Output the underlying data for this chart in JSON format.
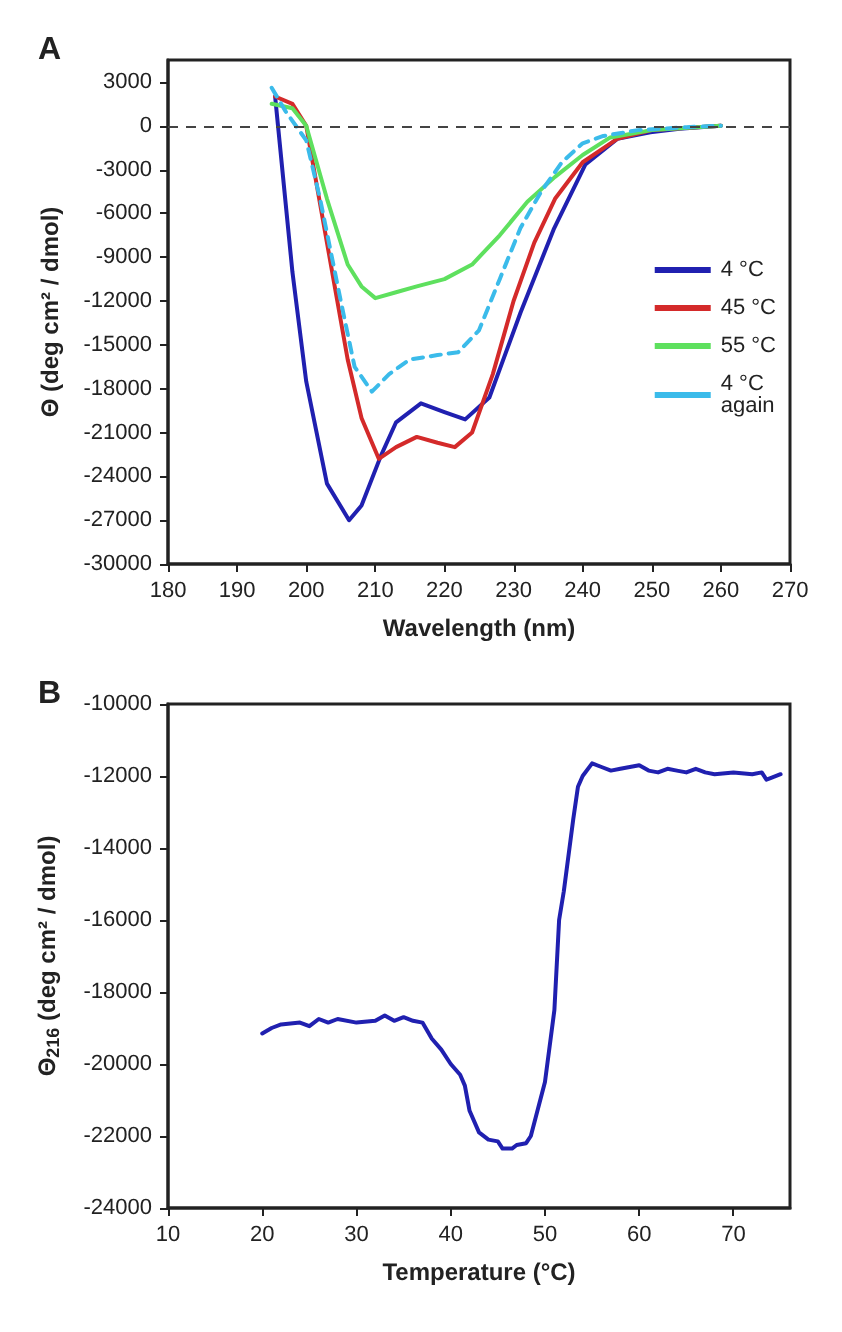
{
  "chart_data": [
    {
      "type": "line",
      "title": "A",
      "xlabel": "Wavelength (nm)",
      "ylabel": "Θ (deg cm² / dmol)",
      "xlim": [
        180,
        270
      ],
      "xticks": [
        180,
        190,
        200,
        210,
        220,
        230,
        240,
        250,
        260,
        270
      ],
      "ylim": [
        -30000,
        4500
      ],
      "yticks": [
        -30000,
        -27000,
        -24000,
        -21000,
        -18000,
        -15000,
        -12000,
        -9000,
        -6000,
        -3000,
        0,
        3000
      ],
      "grid": false,
      "legend": "right",
      "marker": "none",
      "ref_lines": [
        {
          "axis": "y",
          "value": 0,
          "color": "#444444",
          "line_style": "dashed"
        }
      ],
      "series": [
        {
          "name": "4 °C",
          "color": "#2020b0",
          "line_style": "solid",
          "x": [
            195.5,
            198,
            200,
            203,
            206.2,
            208,
            210.8,
            213,
            216.6,
            220,
            223,
            226.5,
            231,
            235.8,
            240.4,
            245,
            249.8,
            254,
            260
          ],
          "values": [
            2000,
            -10000,
            -17500,
            -24500,
            -27000,
            -26000,
            -22600,
            -20300,
            -19000,
            -19600,
            -20100,
            -18600,
            -12800,
            -7100,
            -2650,
            -900,
            -450,
            -200,
            0
          ]
        },
        {
          "name": "45 °C",
          "color": "#d42a2a",
          "line_style": "solid",
          "x": [
            195.5,
            198,
            200,
            203,
            206,
            208,
            210.5,
            213,
            216,
            219,
            221.5,
            224,
            227,
            230,
            233,
            236,
            240,
            245,
            250,
            260
          ],
          "values": [
            2000,
            1500,
            0,
            -8000,
            -16000,
            -20000,
            -22800,
            -22000,
            -21300,
            -21700,
            -22000,
            -21000,
            -17000,
            -12000,
            -8000,
            -5000,
            -2500,
            -900,
            -300,
            0
          ]
        },
        {
          "name": "55 °C",
          "color": "#5ee05e",
          "line_style": "solid",
          "x": [
            195,
            198,
            200,
            203,
            206,
            208,
            210,
            213,
            216,
            220,
            224,
            228,
            232,
            236,
            240,
            244,
            250,
            260
          ],
          "values": [
            1500,
            1200,
            0,
            -5000,
            -9500,
            -11000,
            -11800,
            -11400,
            -11000,
            -10500,
            -9500,
            -7500,
            -5200,
            -3500,
            -2000,
            -800,
            -300,
            0
          ]
        },
        {
          "name": "4 °C again",
          "color": "#3bbbea",
          "line_style": "dashed",
          "x": [
            195,
            197,
            200,
            202,
            205,
            207,
            209.5,
            212,
            215,
            219,
            222,
            225,
            228,
            231,
            234,
            237,
            240,
            243,
            248,
            255,
            260
          ],
          "values": [
            2600,
            1000,
            -1000,
            -5000,
            -12000,
            -16500,
            -18200,
            -17000,
            -16000,
            -15700,
            -15500,
            -14000,
            -10500,
            -7000,
            -4500,
            -2500,
            -1200,
            -700,
            -300,
            -100,
            0
          ]
        }
      ]
    },
    {
      "type": "line",
      "title": "B",
      "xlabel": "Temperature (°C)",
      "ylabel": "Θ$_{216}$ (deg cm² / dmol)",
      "xlim": [
        10,
        76
      ],
      "xticks": [
        10,
        20,
        30,
        40,
        50,
        60,
        70
      ],
      "ylim": [
        -24000,
        -10000
      ],
      "yticks": [
        -24000,
        -22000,
        -20000,
        -18000,
        -16000,
        -14000,
        -12000,
        -10000
      ],
      "grid": false,
      "legend": false,
      "marker": "none",
      "series": [
        {
          "color": "#2020b0",
          "line_style": "solid",
          "x": [
            20,
            21,
            22,
            24,
            25,
            26,
            27,
            28,
            30,
            32,
            33,
            34,
            35,
            36,
            37,
            38,
            39,
            40,
            41,
            41.5,
            42,
            43,
            44,
            45,
            45.5,
            46.5,
            47,
            48,
            48.5,
            49,
            50,
            51,
            51.5,
            52,
            53,
            53.5,
            54,
            55,
            56,
            57,
            58,
            59,
            60,
            61,
            62,
            63,
            64,
            65,
            66,
            67,
            68,
            70,
            72,
            73,
            73.5,
            74,
            75
          ],
          "values": [
            -19150,
            -19000,
            -18900,
            -18850,
            -18950,
            -18750,
            -18850,
            -18750,
            -18850,
            -18800,
            -18650,
            -18800,
            -18700,
            -18800,
            -18850,
            -19300,
            -19600,
            -20000,
            -20300,
            -20600,
            -21300,
            -21900,
            -22100,
            -22150,
            -22350,
            -22350,
            -22250,
            -22200,
            -22000,
            -21500,
            -20500,
            -18500,
            -16000,
            -15200,
            -13200,
            -12300,
            -12000,
            -11650,
            -11750,
            -11850,
            -11800,
            -11750,
            -11700,
            -11850,
            -11900,
            -11800,
            -11850,
            -11900,
            -11800,
            -11900,
            -11950,
            -11900,
            -11950,
            -11900,
            -12100,
            -12050,
            -11950
          ]
        }
      ]
    }
  ]
}
